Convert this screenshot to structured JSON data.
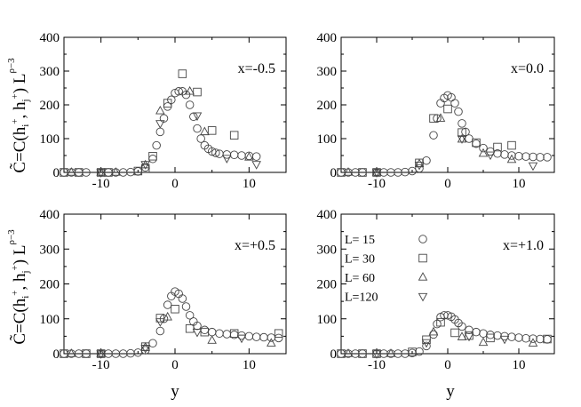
{
  "chart_data": [
    {
      "type": "scatter",
      "annotation": "x=-0.5",
      "xlim": [
        -15,
        15
      ],
      "ylim": [
        0,
        400
      ],
      "xticks": [
        -10,
        0,
        10
      ],
      "yticks": [
        0,
        100,
        200,
        300,
        400
      ],
      "series": [
        {
          "name": "L= 15",
          "marker": "circle",
          "points": [
            [
              -15,
              0
            ],
            [
              -14,
              0
            ],
            [
              -13,
              0
            ],
            [
              -12,
              0
            ],
            [
              -10,
              0
            ],
            [
              -9,
              0
            ],
            [
              -8,
              0
            ],
            [
              -7,
              0
            ],
            [
              -6,
              1
            ],
            [
              -5,
              3
            ],
            [
              -4,
              15
            ],
            [
              -3,
              40
            ],
            [
              -2.5,
              80
            ],
            [
              -2,
              120
            ],
            [
              -1.5,
              160
            ],
            [
              -1,
              195
            ],
            [
              -0.5,
              215
            ],
            [
              0,
              235
            ],
            [
              0.5,
              240
            ],
            [
              1,
              240
            ],
            [
              1.5,
              230
            ],
            [
              2,
              200
            ],
            [
              2.5,
              165
            ],
            [
              3,
              130
            ],
            [
              3.5,
              100
            ],
            [
              4,
              80
            ],
            [
              4.5,
              70
            ],
            [
              5,
              62
            ],
            [
              5.5,
              58
            ],
            [
              6,
              55
            ],
            [
              7,
              53
            ],
            [
              8,
              52
            ],
            [
              9,
              50
            ],
            [
              10,
              49
            ],
            [
              11,
              47
            ]
          ]
        },
        {
          "name": "L= 30",
          "marker": "square",
          "points": [
            [
              -15,
              0
            ],
            [
              -13,
              0
            ],
            [
              -10,
              0
            ],
            [
              -9,
              0
            ],
            [
              -5,
              4
            ],
            [
              -4,
              12
            ],
            [
              -3,
              48
            ],
            [
              -1,
              205
            ],
            [
              1,
              292
            ],
            [
              3,
              238
            ],
            [
              5,
              124
            ],
            [
              8,
              110
            ]
          ]
        },
        {
          "name": "L= 60",
          "marker": "triangle-up",
          "points": [
            [
              -14,
              0
            ],
            [
              -10,
              0
            ],
            [
              -8,
              0
            ],
            [
              -4,
              22
            ],
            [
              -2,
              182
            ],
            [
              2,
              240
            ],
            [
              4,
              120
            ],
            [
              10,
              45
            ]
          ]
        },
        {
          "name": "L=120",
          "marker": "triangle-down",
          "points": [
            [
              -10,
              0
            ],
            [
              -4,
              24
            ],
            [
              -2,
              145
            ],
            [
              3,
              168
            ],
            [
              7,
              42
            ],
            [
              11,
              24
            ]
          ]
        }
      ]
    },
    {
      "type": "scatter",
      "annotation": "x=0.0",
      "xlim": [
        -15,
        15
      ],
      "ylim": [
        0,
        400
      ],
      "xticks": [
        -10,
        0,
        10
      ],
      "yticks": [
        0,
        100,
        200,
        300,
        400
      ],
      "series": [
        {
          "name": "L= 15",
          "marker": "circle",
          "points": [
            [
              -15,
              0
            ],
            [
              -14,
              0
            ],
            [
              -13,
              0
            ],
            [
              -12,
              0
            ],
            [
              -10,
              0
            ],
            [
              -9,
              0
            ],
            [
              -8,
              0
            ],
            [
              -7,
              0
            ],
            [
              -6,
              1
            ],
            [
              -5,
              4
            ],
            [
              -4,
              12
            ],
            [
              -3,
              35
            ],
            [
              -2,
              110
            ],
            [
              -1.5,
              160
            ],
            [
              -1,
              205
            ],
            [
              -0.5,
              220
            ],
            [
              0,
              228
            ],
            [
              0.5,
              222
            ],
            [
              1,
              205
            ],
            [
              1.5,
              180
            ],
            [
              2,
              145
            ],
            [
              2.5,
              120
            ],
            [
              3,
              100
            ],
            [
              4,
              85
            ],
            [
              5,
              72
            ],
            [
              6,
              62
            ],
            [
              7,
              56
            ],
            [
              8,
              53
            ],
            [
              9,
              50
            ],
            [
              10,
              48
            ],
            [
              11,
              47
            ],
            [
              12,
              46
            ],
            [
              13,
              45
            ],
            [
              14,
              45
            ]
          ]
        },
        {
          "name": "L= 30",
          "marker": "square",
          "points": [
            [
              -15,
              0
            ],
            [
              -12,
              0
            ],
            [
              -10,
              0
            ],
            [
              -4,
              28
            ],
            [
              -2,
              160
            ],
            [
              0,
              188
            ],
            [
              2,
              118
            ],
            [
              4,
              88
            ],
            [
              7,
              75
            ],
            [
              9,
              80
            ]
          ]
        },
        {
          "name": "L= 60",
          "marker": "triangle-up",
          "points": [
            [
              -14,
              0
            ],
            [
              -10,
              0
            ],
            [
              -4,
              25
            ],
            [
              -1,
              160
            ],
            [
              2,
              98
            ],
            [
              5,
              56
            ],
            [
              9,
              38
            ]
          ]
        },
        {
          "name": "L=120",
          "marker": "triangle-down",
          "points": [
            [
              -10,
              0
            ],
            [
              -4,
              22
            ],
            [
              2,
              100
            ],
            [
              6,
              52
            ],
            [
              12,
              20
            ]
          ]
        }
      ]
    },
    {
      "type": "scatter",
      "annotation": "x=+0.5",
      "xlim": [
        -15,
        15
      ],
      "ylim": [
        0,
        400
      ],
      "xticks": [
        -10,
        0,
        10
      ],
      "yticks": [
        0,
        100,
        200,
        300,
        400
      ],
      "series": [
        {
          "name": "L= 15",
          "marker": "circle",
          "points": [
            [
              -15,
              0
            ],
            [
              -14,
              0
            ],
            [
              -13,
              0
            ],
            [
              -12,
              0
            ],
            [
              -10,
              0
            ],
            [
              -9,
              0
            ],
            [
              -8,
              0
            ],
            [
              -7,
              0
            ],
            [
              -6,
              1
            ],
            [
              -5,
              3
            ],
            [
              -4,
              10
            ],
            [
              -3,
              30
            ],
            [
              -2,
              65
            ],
            [
              -1.5,
              100
            ],
            [
              -1,
              140
            ],
            [
              -0.5,
              165
            ],
            [
              0,
              178
            ],
            [
              0.5,
              172
            ],
            [
              1,
              158
            ],
            [
              1.5,
              135
            ],
            [
              2,
              110
            ],
            [
              2.5,
              92
            ],
            [
              3,
              80
            ],
            [
              4,
              68
            ],
            [
              5,
              62
            ],
            [
              6,
              58
            ],
            [
              7,
              56
            ],
            [
              8,
              54
            ],
            [
              9,
              52
            ],
            [
              10,
              50
            ],
            [
              11,
              48
            ],
            [
              12,
              47
            ],
            [
              13,
              46
            ],
            [
              14,
              45
            ]
          ]
        },
        {
          "name": "L= 30",
          "marker": "square",
          "points": [
            [
              -15,
              0
            ],
            [
              -12,
              0
            ],
            [
              -10,
              0
            ],
            [
              -4,
              20
            ],
            [
              -2,
              102
            ],
            [
              0,
              128
            ],
            [
              2,
              72
            ],
            [
              4,
              62
            ],
            [
              8,
              58
            ],
            [
              14,
              58
            ]
          ]
        },
        {
          "name": "L= 60",
          "marker": "triangle-up",
          "points": [
            [
              -14,
              0
            ],
            [
              -10,
              0
            ],
            [
              -4,
              18
            ],
            [
              -1,
              105
            ],
            [
              5,
              38
            ],
            [
              13,
              30
            ]
          ]
        },
        {
          "name": "L=120",
          "marker": "triangle-down",
          "points": [
            [
              -10,
              0
            ],
            [
              -4,
              16
            ],
            [
              -2,
              92
            ],
            [
              3,
              62
            ],
            [
              9,
              45
            ]
          ]
        }
      ]
    },
    {
      "type": "scatter",
      "annotation": "x=+1.0",
      "xlim": [
        -15,
        15
      ],
      "ylim": [
        0,
        400
      ],
      "xticks": [
        -10,
        0,
        10
      ],
      "yticks": [
        0,
        100,
        200,
        300,
        400
      ],
      "legend": {
        "placement": "left"
      },
      "series": [
        {
          "name": "L= 15",
          "marker": "circle",
          "points": [
            [
              -15,
              0
            ],
            [
              -14,
              0
            ],
            [
              -13,
              0
            ],
            [
              -12,
              0
            ],
            [
              -10,
              0
            ],
            [
              -9,
              0
            ],
            [
              -8,
              0
            ],
            [
              -7,
              0
            ],
            [
              -6,
              0
            ],
            [
              -5,
              2
            ],
            [
              -4,
              6
            ],
            [
              -3,
              22
            ],
            [
              -2,
              55
            ],
            [
              -1.5,
              85
            ],
            [
              -1,
              105
            ],
            [
              -0.5,
              110
            ],
            [
              0,
              110
            ],
            [
              0.5,
              106
            ],
            [
              1,
              98
            ],
            [
              1.5,
              88
            ],
            [
              2,
              78
            ],
            [
              3,
              68
            ],
            [
              4,
              62
            ],
            [
              5,
              58
            ],
            [
              6,
              54
            ],
            [
              7,
              52
            ],
            [
              8,
              50
            ],
            [
              9,
              48
            ],
            [
              10,
              46
            ],
            [
              11,
              44
            ],
            [
              12,
              43
            ],
            [
              13,
              42
            ],
            [
              14,
              41
            ]
          ]
        },
        {
          "name": "L= 30",
          "marker": "square",
          "points": [
            [
              -15,
              0
            ],
            [
              -12,
              0
            ],
            [
              -10,
              0
            ],
            [
              -5,
              5
            ],
            [
              -3,
              40
            ],
            [
              -1,
              90
            ],
            [
              1,
              60
            ],
            [
              3,
              52
            ],
            [
              6,
              45
            ],
            [
              14,
              42
            ]
          ]
        },
        {
          "name": "L= 60",
          "marker": "triangle-up",
          "points": [
            [
              -14,
              0
            ],
            [
              -8,
              0
            ],
            [
              -2,
              62
            ],
            [
              2,
              48
            ],
            [
              5,
              32
            ],
            [
              12,
              30
            ]
          ]
        },
        {
          "name": "L=120",
          "marker": "triangle-down",
          "points": [
            [
              -10,
              0
            ],
            [
              -3,
              32
            ],
            [
              3,
              50
            ],
            [
              8,
              42
            ]
          ]
        }
      ]
    }
  ],
  "axes": {
    "ylabel_main": "C̃=C(h",
    "ylabel_i": "i",
    "ylabel_plus": "+",
    "ylabel_comma": ", h",
    "ylabel_j": "j",
    "ylabel_close": ") L",
    "ylabel_exp": "ρ−3",
    "xlabel": "y"
  }
}
